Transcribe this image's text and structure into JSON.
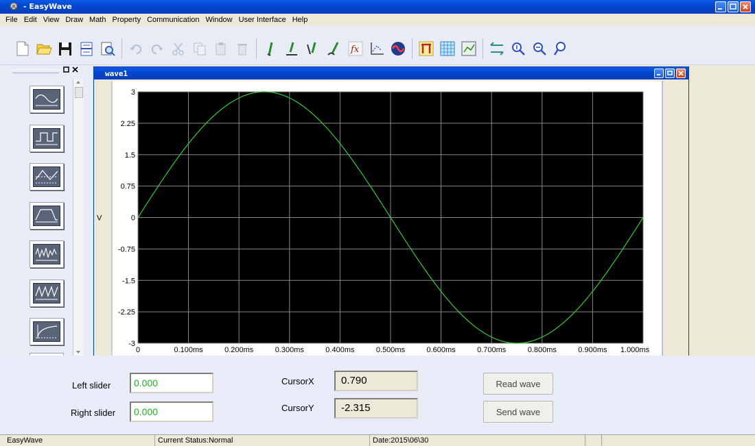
{
  "window": {
    "title": " - EasyWave"
  },
  "menu": [
    "File",
    "Edit",
    "View",
    "Draw",
    "Math",
    "Property",
    "Communication",
    "Window",
    "User Interface",
    "Help"
  ],
  "toolbar": {
    "icons": [
      "new-file-icon",
      "open-folder-icon",
      "save-icon",
      "split-icon",
      "print-preview-icon",
      "undo-icon",
      "redo-icon",
      "cut-icon",
      "copy-icon",
      "paste-icon",
      "delete-icon",
      "pencil-draw-icon",
      "line-draw-icon",
      "point-draw-icon",
      "freehand-draw-icon",
      "math-fx-icon",
      "axis-icon",
      "wave-color-icon",
      "marker-icon",
      "grid-icon",
      "chart-zoom-icon",
      "fit-horizontal-icon",
      "zoom-in-icon",
      "zoom-out-icon",
      "zoom-custom-icon"
    ]
  },
  "left_panel": {
    "waveform_buttons": [
      "sine-wave-icon",
      "square-wave-icon",
      "triangle-wave-icon",
      "trapezoid-wave-icon",
      "noise-wave-icon",
      "sawtooth-wave-icon",
      "exp-rise-icon",
      "more-wave-icon"
    ]
  },
  "child_window": {
    "title": "wave1"
  },
  "chart_data": {
    "type": "line",
    "ylabel": "V",
    "xlabel": "",
    "x_ticks": [
      "0",
      "0.100ms",
      "0.200ms",
      "0.300ms",
      "0.400ms",
      "0.500ms",
      "0.600ms",
      "0.700ms",
      "0.800ms",
      "0.900ms",
      "1.000ms"
    ],
    "y_ticks": [
      "3",
      "2.25",
      "1.5",
      "0.75",
      "0",
      "-0.75",
      "-1.5",
      "-2.25",
      "-3"
    ],
    "xlim": [
      0,
      1.0
    ],
    "ylim": [
      -3,
      3
    ],
    "grid": true,
    "background": "#000000",
    "series": [
      {
        "color": "#33cc33",
        "function": "sine",
        "amplitude": 3,
        "period_ms": 1.0,
        "phase": 0
      }
    ]
  },
  "controls": {
    "left_slider_label": "Left slider",
    "left_slider_value": "0.000",
    "right_slider_label": "Right slider",
    "right_slider_value": "0.000",
    "cursor_x_label": "CursorX",
    "cursor_x_value": "0.790",
    "cursor_y_label": "CursorY",
    "cursor_y_value": "-2.315",
    "read_wave_label": "Read wave",
    "send_wave_label": "Send wave"
  },
  "status": {
    "app": "EasyWave",
    "status": "Current Status:Normal",
    "date": "Date:2015\\06\\30"
  }
}
